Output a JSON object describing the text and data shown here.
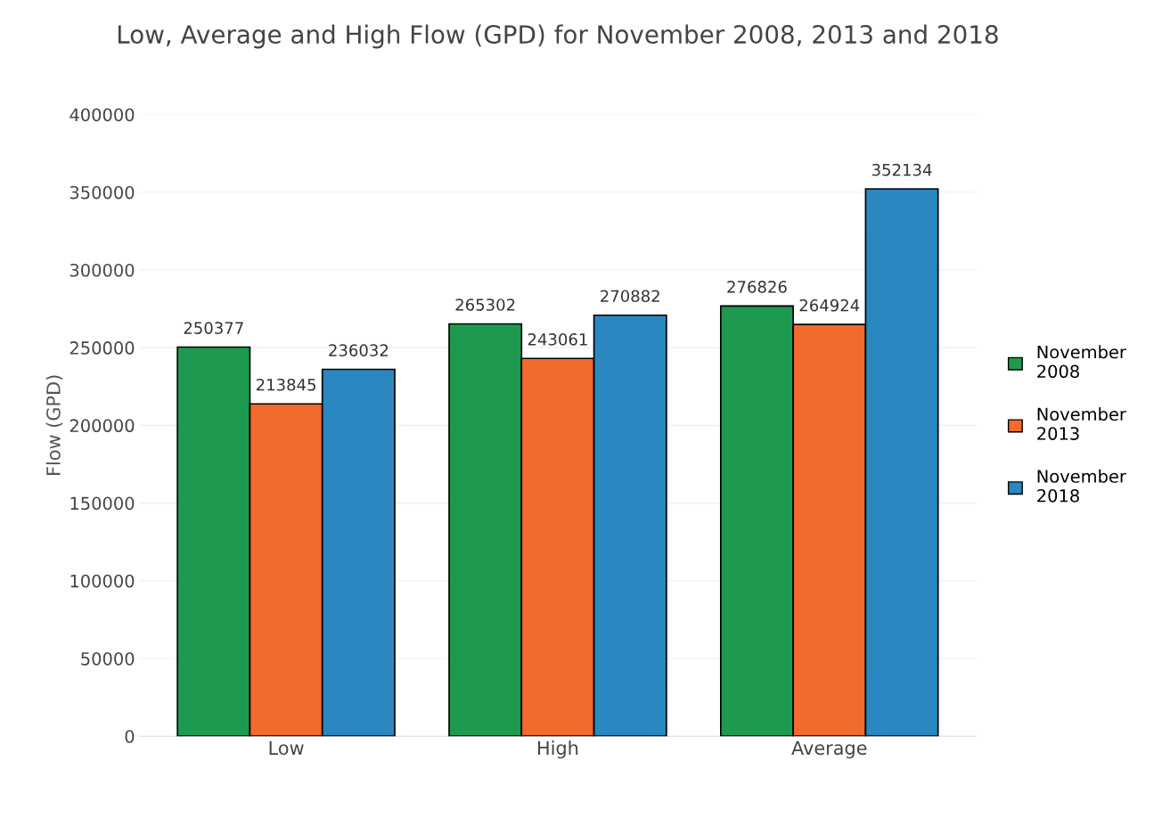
{
  "chart_data": {
    "type": "bar",
    "title": "Low, Average and High Flow (GPD) for November 2008, 2013 and 2018",
    "ylabel": "Flow (GPD)",
    "categories": [
      "Low",
      "High",
      "Average"
    ],
    "series": [
      {
        "name": "November 2008",
        "color": "#1e9a50",
        "values": [
          250377,
          265302,
          276826
        ]
      },
      {
        "name": "November 2013",
        "color": "#f26a2c",
        "values": [
          213845,
          243061,
          264924
        ]
      },
      {
        "name": "November 2018",
        "color": "#2a87c0",
        "values": [
          236032,
          270882,
          352134
        ]
      }
    ],
    "ylim": [
      0,
      400000
    ],
    "yticks": [
      0,
      50000,
      100000,
      150000,
      200000,
      250000,
      300000,
      350000,
      400000
    ],
    "grid": "y",
    "legend": "right",
    "data_labels": true
  }
}
